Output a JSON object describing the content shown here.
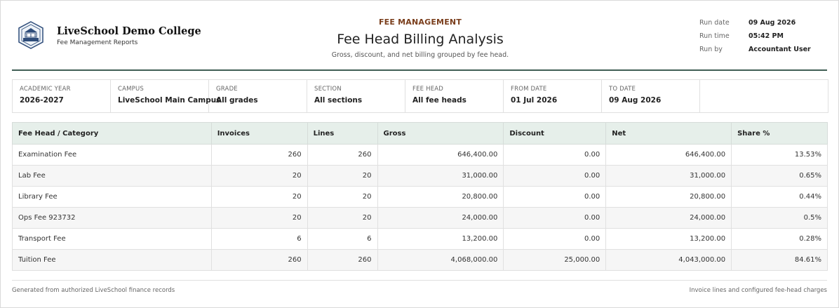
{
  "header": {
    "college_name": "LiveSchool Demo College",
    "college_subtitle": "Fee Management Reports",
    "kicker": "FEE MANAGEMENT",
    "title": "Fee Head Billing Analysis",
    "description": "Gross, discount, and net billing grouped by fee head.",
    "logo_icon": "college-crest-icon"
  },
  "meta": {
    "run_date_label": "Run date",
    "run_date": "09 Aug 2026",
    "run_time_label": "Run time",
    "run_time": "05:42 PM",
    "run_by_label": "Run by",
    "run_by": "Accountant User"
  },
  "filters": [
    {
      "label": "ACADEMIC YEAR",
      "value": "2026-2027"
    },
    {
      "label": "CAMPUS",
      "value": "LiveSchool Main Campus"
    },
    {
      "label": "GRADE",
      "value": "All grades"
    },
    {
      "label": "SECTION",
      "value": "All sections"
    },
    {
      "label": "FEE HEAD",
      "value": "All fee heads"
    },
    {
      "label": "FROM DATE",
      "value": "01 Jul 2026"
    },
    {
      "label": "TO DATE",
      "value": "09 Aug 2026"
    }
  ],
  "table": {
    "columns": [
      "Fee Head / Category",
      "Invoices",
      "Lines",
      "Gross",
      "Discount",
      "Net",
      "Share %"
    ],
    "rows": [
      [
        "Examination Fee",
        "260",
        "260",
        "646,400.00",
        "0.00",
        "646,400.00",
        "13.53%"
      ],
      [
        "Lab Fee",
        "20",
        "20",
        "31,000.00",
        "0.00",
        "31,000.00",
        "0.65%"
      ],
      [
        "Library Fee",
        "20",
        "20",
        "20,800.00",
        "0.00",
        "20,800.00",
        "0.44%"
      ],
      [
        "Ops Fee 923732",
        "20",
        "20",
        "24,000.00",
        "0.00",
        "24,000.00",
        "0.5%"
      ],
      [
        "Transport Fee",
        "6",
        "6",
        "13,200.00",
        "0.00",
        "13,200.00",
        "0.28%"
      ],
      [
        "Tuition Fee",
        "260",
        "260",
        "4,068,000.00",
        "25,000.00",
        "4,043,000.00",
        "84.61%"
      ]
    ]
  },
  "footer": {
    "left": "Generated from authorized LiveSchool finance records",
    "right": "Invoice lines and configured fee-head charges"
  }
}
